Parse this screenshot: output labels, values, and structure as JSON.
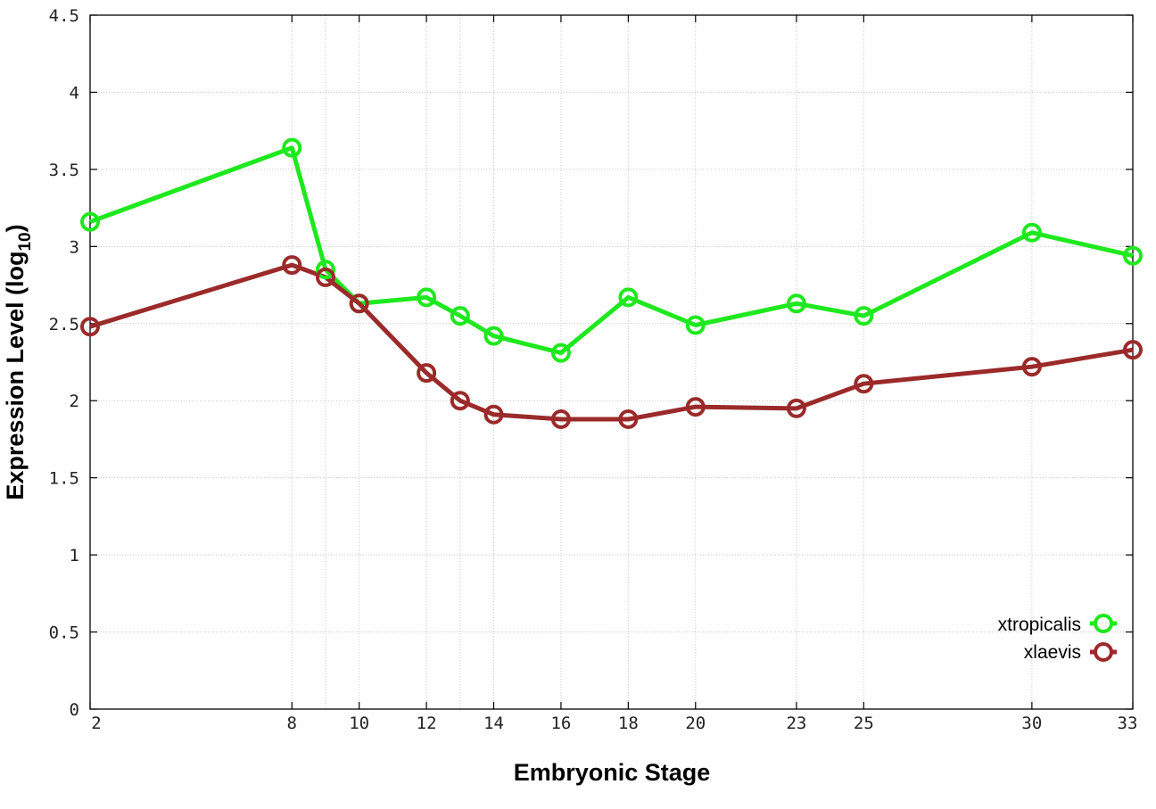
{
  "chart_data": {
    "type": "line",
    "xlabel": "Embryonic Stage",
    "ylabel": "Expression Level (log",
    "ylabel_sub": "10",
    "ylabel_end": ")",
    "x_ticks": [
      2,
      8,
      10,
      12,
      14,
      16,
      18,
      20,
      23,
      25,
      30,
      33
    ],
    "x_tick_labels": [
      "2",
      "8",
      "10",
      "12",
      "14",
      "16",
      "18",
      "20",
      "23",
      "25",
      "30",
      "33"
    ],
    "y_ticks": [
      0,
      0.5,
      1,
      1.5,
      2,
      2.5,
      3,
      3.5,
      4,
      4.5
    ],
    "y_tick_labels": [
      "0",
      "0.5",
      "1",
      "1.5",
      "2",
      "2.5",
      "3",
      "3.5",
      "4",
      "4.5"
    ],
    "xlim": [
      2,
      33
    ],
    "ylim": [
      0,
      4.5
    ],
    "grid": true,
    "legend_position": "bottom-right",
    "x_positions": [
      2,
      8,
      9,
      10,
      12,
      13,
      14,
      16,
      18,
      20,
      23,
      25,
      30,
      33
    ],
    "series": [
      {
        "name": "xtropicalis",
        "color": "#1ee81e",
        "x": [
          2,
          8,
          9,
          10,
          12,
          13,
          14,
          16,
          18,
          20,
          23,
          25,
          30,
          33
        ],
        "values": [
          3.16,
          3.64,
          2.85,
          2.63,
          2.67,
          2.55,
          2.42,
          2.31,
          2.67,
          2.49,
          2.63,
          2.55,
          3.09,
          2.94
        ]
      },
      {
        "name": "xlaevis",
        "color": "#9b2a2a",
        "x": [
          2,
          8,
          9,
          10,
          12,
          13,
          14,
          16,
          18,
          20,
          23,
          25,
          30,
          33
        ],
        "values": [
          2.48,
          2.88,
          2.8,
          2.63,
          2.18,
          2.0,
          1.91,
          1.88,
          1.88,
          1.96,
          1.95,
          2.11,
          2.22,
          2.33
        ]
      }
    ]
  }
}
